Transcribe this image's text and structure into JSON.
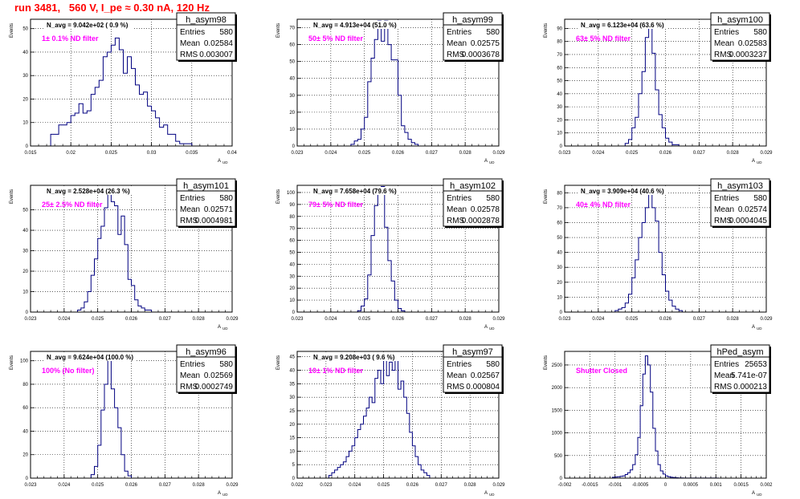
{
  "page_title": "run 3481,   560 V, I_pe ≈ 0.30 nA, 120 Hz",
  "colors": {
    "title": "#ff0000",
    "annotation": "#ff00ff",
    "hist": "#000080",
    "grid": "#000000"
  },
  "ylabel": "Events",
  "xlabel": "A",
  "xlabel_sub": "UD",
  "stats_labels": {
    "entries": "Entries",
    "mean": "Mean",
    "rms": "RMS"
  },
  "chart_data": [
    {
      "type": "histogram",
      "name": "h_asym98",
      "navg": "N_avg = 9.042e+02 ( 0.9 %)",
      "annotation": "1± 0.1% ND filter",
      "stats": {
        "entries": "580",
        "mean": "0.02584",
        "rms": "0.003007"
      },
      "xlim": [
        0.015,
        0.04
      ],
      "xticks": [
        "0.015",
        "0.02",
        "0.025",
        "0.03",
        "0.035",
        "0.04"
      ],
      "ylim": [
        0,
        54
      ],
      "yticks": [
        "0",
        "10",
        "20",
        "30",
        "40",
        "50"
      ],
      "bins": {
        "start": 0.0175,
        "width": 0.0005,
        "counts": [
          5,
          5,
          9,
          9,
          10,
          13,
          14,
          18,
          14,
          15,
          22,
          25,
          28,
          38,
          40,
          43,
          46,
          41,
          31,
          38,
          33,
          26,
          22,
          23,
          17,
          15,
          12,
          8,
          9,
          5,
          5,
          2,
          1,
          1,
          1
        ]
      }
    },
    {
      "type": "histogram",
      "name": "h_asym99",
      "navg": "N_avg = 4.913e+04 (51.0 %)",
      "annotation": "50± 5% ND filter",
      "stats": {
        "entries": "580",
        "mean": "0.02575",
        "rms": "0.0003678"
      },
      "xlim": [
        0.023,
        0.029
      ],
      "xticks": [
        "0.023",
        "0.024",
        "0.025",
        "0.026",
        "0.027",
        "0.028",
        "0.029"
      ],
      "ylim": [
        0,
        75
      ],
      "yticks": [
        "0",
        "10",
        "20",
        "30",
        "40",
        "50",
        "60",
        "70"
      ],
      "bins": {
        "start": 0.0246,
        "width": 0.0001,
        "counts": [
          1,
          3,
          4,
          10,
          17,
          38,
          52,
          63,
          74,
          62,
          74,
          60,
          51,
          51,
          30,
          12,
          8,
          4,
          2,
          1
        ]
      }
    },
    {
      "type": "histogram",
      "name": "h_asym100",
      "navg": "N_avg = 6.123e+04 (63.6 %)",
      "annotation": "63± 5% ND filter",
      "stats": {
        "entries": "580",
        "mean": "0.02583",
        "rms": "0.0003237"
      },
      "xlim": [
        0.023,
        0.029
      ],
      "xticks": [
        "0.023",
        "0.024",
        "0.025",
        "0.026",
        "0.027",
        "0.028",
        "0.029"
      ],
      "ylim": [
        0,
        97
      ],
      "yticks": [
        "0",
        "10",
        "20",
        "30",
        "40",
        "50",
        "60",
        "70",
        "80",
        "90"
      ],
      "bins": {
        "start": 0.0248,
        "width": 0.0001,
        "counts": [
          2,
          5,
          14,
          22,
          40,
          57,
          83,
          95,
          71,
          43,
          24,
          14,
          6,
          3,
          1,
          1
        ]
      }
    },
    {
      "type": "histogram",
      "name": "h_asym101",
      "navg": "N_avg = 2.528e+04 (26.3 %)",
      "annotation": "25± 2.5% ND filter",
      "stats": {
        "entries": "580",
        "mean": "0.02571",
        "rms": "0.0004981"
      },
      "xlim": [
        0.023,
        0.029
      ],
      "xticks": [
        "0.023",
        "0.024",
        "0.025",
        "0.026",
        "0.027",
        "0.028",
        "0.029"
      ],
      "ylim": [
        0,
        62
      ],
      "yticks": [
        "0",
        "10",
        "20",
        "30",
        "40",
        "50"
      ],
      "bins": {
        "start": 0.0244,
        "width": 0.0001,
        "counts": [
          1,
          2,
          5,
          10,
          18,
          26,
          36,
          42,
          51,
          58,
          54,
          52,
          38,
          47,
          33,
          16,
          13,
          6,
          3,
          2,
          1,
          1
        ]
      }
    },
    {
      "type": "histogram",
      "name": "h_asym102",
      "navg": "N_avg = 7.658e+04 (79.6 %)",
      "annotation": "79± 5% ND filter",
      "stats": {
        "entries": "580",
        "mean": "0.02578",
        "rms": "0.0002878"
      },
      "xlim": [
        0.023,
        0.029
      ],
      "xticks": [
        "0.023",
        "0.024",
        "0.025",
        "0.026",
        "0.027",
        "0.028",
        "0.029"
      ],
      "ylim": [
        0,
        106
      ],
      "yticks": [
        "0",
        "10",
        "20",
        "30",
        "40",
        "50",
        "60",
        "70",
        "80",
        "90",
        "100"
      ],
      "bins": {
        "start": 0.0248,
        "width": 0.0001,
        "counts": [
          1,
          5,
          11,
          31,
          64,
          89,
          101,
          105,
          71,
          43,
          26,
          10,
          3,
          1
        ]
      }
    },
    {
      "type": "histogram",
      "name": "h_asym103",
      "navg": "N_avg = 3.909e+04 (40.6 %)",
      "annotation": "40± 4% ND filter",
      "stats": {
        "entries": "580",
        "mean": "0.02574",
        "rms": "0.0004045"
      },
      "xlim": [
        0.023,
        0.029
      ],
      "xticks": [
        "0.023",
        "0.024",
        "0.025",
        "0.026",
        "0.027",
        "0.028",
        "0.029"
      ],
      "ylim": [
        0,
        85
      ],
      "yticks": [
        "0",
        "10",
        "20",
        "30",
        "40",
        "50",
        "60",
        "70",
        "80"
      ],
      "bins": {
        "start": 0.0245,
        "width": 0.0001,
        "counts": [
          1,
          2,
          3,
          6,
          12,
          23,
          35,
          50,
          60,
          70,
          81,
          70,
          61,
          40,
          25,
          14,
          8,
          4,
          2,
          1
        ]
      }
    },
    {
      "type": "histogram",
      "name": "h_asym96",
      "navg": "N_avg = 9.624e+04 (100.0 %)",
      "annotation": "100% (No filter)",
      "stats": {
        "entries": "580",
        "mean": "0.02569",
        "rms": "0.0002749"
      },
      "xlim": [
        0.023,
        0.029
      ],
      "xticks": [
        "0.023",
        "0.024",
        "0.025",
        "0.026",
        "0.027",
        "0.028",
        "0.029"
      ],
      "ylim": [
        0,
        108
      ],
      "yticks": [
        "0",
        "20",
        "40",
        "60",
        "80",
        "100"
      ],
      "bins": {
        "start": 0.0248,
        "width": 0.0001,
        "counts": [
          3,
          10,
          28,
          58,
          80,
          105,
          76,
          60,
          43,
          20,
          6,
          2
        ]
      }
    },
    {
      "type": "histogram",
      "name": "h_asym97",
      "navg": "N_avg = 9.208e+03 ( 9.6 %)",
      "annotation": "10± 1% ND filter",
      "stats": {
        "entries": "580",
        "mean": "0.02567",
        "rms": "0.000804"
      },
      "xlim": [
        0.022,
        0.029
      ],
      "xticks": [
        "0.022",
        "0.023",
        "0.024",
        "0.025",
        "0.026",
        "0.027",
        "0.028",
        "0.029"
      ],
      "ylim": [
        0,
        47
      ],
      "yticks": [
        "0",
        "5",
        "10",
        "15",
        "20",
        "25",
        "30",
        "35",
        "40",
        "45"
      ],
      "bins": {
        "start": 0.0231,
        "width": 0.0001,
        "counts": [
          1,
          2,
          3,
          4,
          5,
          6,
          8,
          10,
          12,
          15,
          18,
          20,
          23,
          26,
          30,
          28,
          37,
          40,
          35,
          45,
          38,
          43,
          40,
          45,
          33,
          36,
          30,
          24,
          17,
          12,
          8,
          5,
          3,
          2,
          1
        ]
      }
    },
    {
      "type": "histogram",
      "name": "hPed_asym",
      "navg": "",
      "annotation": "Shutter Closed",
      "stats": {
        "entries": "25653",
        "mean": "5.741e-07",
        "rms": "0.000213"
      },
      "xlim": [
        -0.002,
        0.002
      ],
      "xticks": [
        "-0.002",
        "-0.0015",
        "-0.001",
        "-0.0005",
        "0",
        "0.0005",
        "0.001",
        "0.0015",
        "0.002"
      ],
      "ylim": [
        0,
        2800
      ],
      "yticks": [
        "0",
        "500",
        "1000",
        "1500",
        "2000",
        "2500"
      ],
      "bins": {
        "start": -0.00105,
        "width": 5e-05,
        "counts": [
          20,
          25,
          30,
          40,
          50,
          80,
          120,
          180,
          300,
          520,
          900,
          1600,
          2300,
          2700,
          2500,
          1900,
          1100,
          600,
          300,
          160,
          90,
          50,
          30,
          20,
          12,
          8,
          5,
          3,
          2,
          1,
          1,
          1,
          1,
          1,
          1,
          1,
          1,
          1,
          1,
          1,
          1,
          1
        ]
      }
    }
  ]
}
